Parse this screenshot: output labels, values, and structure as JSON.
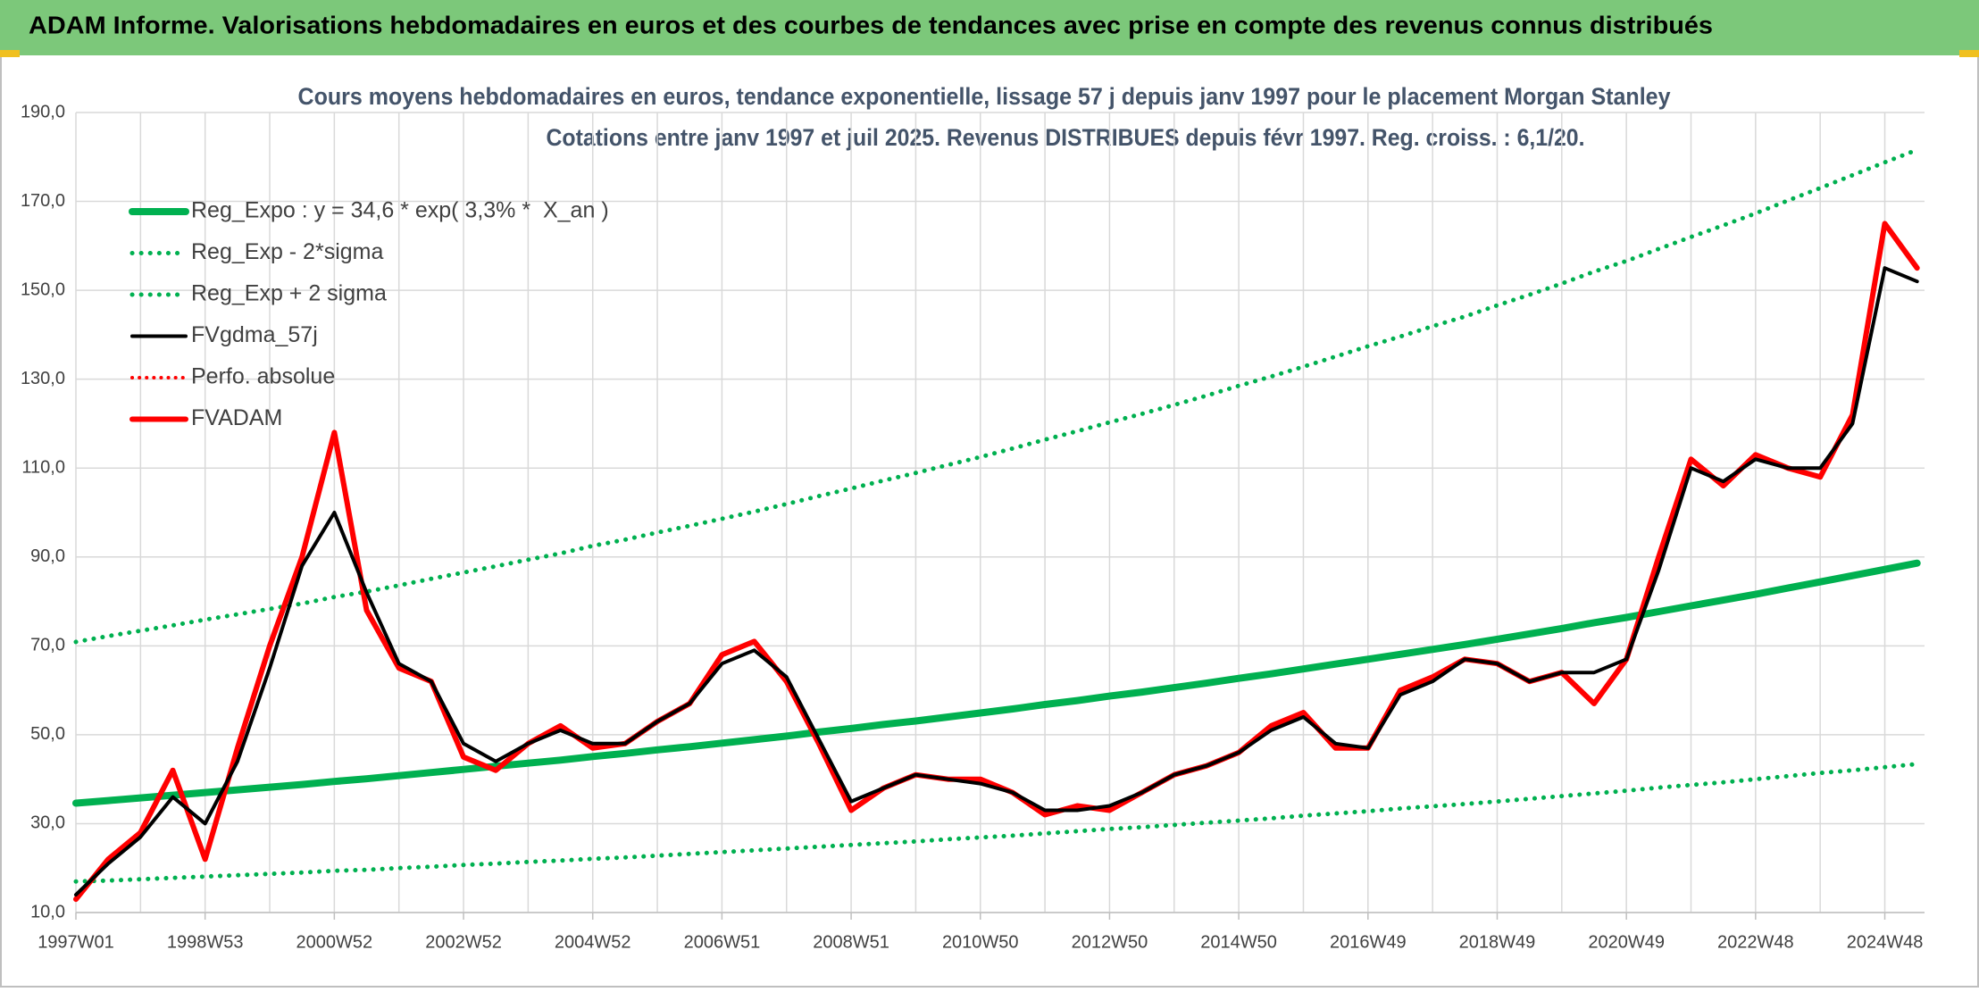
{
  "header": {
    "title": "ADAM Informe. Valorisations hebdomadaires en euros et des courbes de tendances avec prise en compte des revenus connus distribués"
  },
  "chart_data": {
    "type": "line",
    "title": "Cours moyens hebdomadaires en euros, tendance exponentielle, lissage 57 j depuis janv 1997 pour le placement Morgan Stanley",
    "subtitle": "Cotations entre janv 1997 et juil 2025. Revenus DISTRIBUES depuis févr 1997. Reg. croiss. : 6,1/20.",
    "categories": [
      "1997W01",
      null,
      null,
      null,
      "1998W53",
      null,
      null,
      null,
      "2000W52",
      null,
      null,
      null,
      "2002W52",
      null,
      null,
      null,
      "2004W52",
      null,
      null,
      null,
      "2006W51",
      null,
      null,
      null,
      "2008W51",
      null,
      null,
      null,
      "2010W50",
      null,
      null,
      null,
      "2012W50",
      null,
      null,
      null,
      "2014W50",
      null,
      null,
      null,
      "2016W49",
      null,
      null,
      null,
      "2018W49",
      null,
      null,
      null,
      "2020W49",
      null,
      null,
      null,
      "2022W48",
      null,
      null,
      null,
      "2024W48",
      null
    ],
    "ylim": [
      10,
      190
    ],
    "yticks": [
      {
        "value": 10,
        "label": "10,0"
      },
      {
        "value": 30,
        "label": "30,0"
      },
      {
        "value": 50,
        "label": "50,0"
      },
      {
        "value": 70,
        "label": "70,0"
      },
      {
        "value": 90,
        "label": "90,0"
      },
      {
        "value": 110,
        "label": "110,0"
      },
      {
        "value": 130,
        "label": "130,0"
      },
      {
        "value": 150,
        "label": "150,0"
      },
      {
        "value": 170,
        "label": "170,0"
      },
      {
        "value": 190,
        "label": "190,0"
      }
    ],
    "grid": true,
    "legend": "upper-left",
    "series": [
      {
        "name": "Reg_Expo : y = 34,6 * exp( 3,3% *  X_an )",
        "color": "#00b050",
        "style": "solid",
        "width": 8,
        "values": [
          34.6,
          35.2,
          35.8,
          36.4,
          37.0,
          37.6,
          38.2,
          38.8,
          39.5,
          40.1,
          40.8,
          41.5,
          42.2,
          42.9,
          43.6,
          44.3,
          45.1,
          45.8,
          46.6,
          47.3,
          48.1,
          48.9,
          49.7,
          50.6,
          51.4,
          52.3,
          53.1,
          54.0,
          54.9,
          55.8,
          56.8,
          57.7,
          58.7,
          59.6,
          60.6,
          61.6,
          62.7,
          63.7,
          64.8,
          65.9,
          67.0,
          68.1,
          69.2,
          70.3,
          71.5,
          72.7,
          73.9,
          75.2,
          76.4,
          77.7,
          79.0,
          80.3,
          81.6,
          83.0,
          84.4,
          85.8,
          87.2,
          88.6
        ]
      },
      {
        "name": "Reg_Exp - 2*sigma",
        "color": "#00b050",
        "style": "dotted",
        "width": 5,
        "values": [
          17.0,
          17.2,
          17.5,
          17.8,
          18.1,
          18.4,
          18.7,
          19.0,
          19.4,
          19.6,
          20.0,
          20.3,
          20.7,
          21.0,
          21.4,
          21.7,
          22.1,
          22.4,
          22.8,
          23.2,
          23.6,
          24.0,
          24.4,
          24.8,
          25.2,
          25.6,
          26.0,
          26.5,
          26.9,
          27.3,
          27.8,
          28.3,
          28.8,
          29.2,
          29.7,
          30.2,
          30.7,
          31.2,
          31.8,
          32.3,
          32.8,
          33.4,
          33.9,
          34.4,
          35.0,
          35.6,
          36.2,
          36.8,
          37.4,
          38.1,
          38.7,
          39.3,
          40.0,
          40.7,
          41.4,
          42.0,
          42.7,
          43.4
        ]
      },
      {
        "name": "Reg_Exp + 2 sigma",
        "color": "#00b050",
        "style": "dotted",
        "width": 5,
        "values": [
          70.9,
          72.2,
          73.4,
          74.6,
          75.9,
          77.1,
          78.3,
          79.5,
          81.0,
          82.2,
          83.6,
          85.1,
          86.5,
          87.9,
          89.4,
          90.8,
          92.5,
          93.9,
          95.5,
          97.0,
          98.6,
          100.2,
          101.9,
          103.7,
          105.4,
          107.2,
          108.9,
          110.7,
          112.5,
          114.4,
          116.4,
          118.3,
          120.3,
          122.2,
          124.2,
          126.3,
          128.5,
          130.6,
          132.8,
          135.1,
          137.4,
          139.6,
          141.9,
          144.1,
          146.6,
          149.0,
          151.5,
          154.2,
          156.6,
          159.3,
          162.0,
          164.6,
          167.3,
          170.2,
          173.0,
          175.9,
          178.8,
          181.6
        ]
      },
      {
        "name": "FVgdma_57j",
        "color": "#000000",
        "style": "solid",
        "width": 4,
        "values": [
          14,
          21,
          27,
          36,
          30,
          44,
          65,
          88,
          100,
          82,
          66,
          62,
          48,
          44,
          48,
          51,
          48,
          48,
          53,
          57,
          66,
          69,
          63,
          49,
          35,
          38,
          41,
          40,
          39,
          37,
          33,
          33,
          34,
          37,
          41,
          43,
          46,
          51,
          54,
          48,
          47,
          59,
          62,
          67,
          66,
          62,
          64,
          64,
          67,
          87,
          110,
          107,
          112,
          110,
          110,
          120,
          155,
          152
        ]
      },
      {
        "name": "Perfo. absolue",
        "color": "#ff0000",
        "style": "dotted",
        "width": 4,
        "values": [
          null,
          null,
          null,
          null,
          null,
          null,
          null,
          null,
          null,
          null,
          null,
          null,
          null,
          null,
          null,
          null,
          null,
          null,
          null,
          null,
          null,
          null,
          null,
          null,
          null,
          null,
          null,
          null,
          null,
          null,
          null,
          null,
          null,
          null,
          null,
          null,
          null,
          null,
          null,
          null,
          null,
          null,
          null,
          null,
          null,
          null,
          null,
          null,
          null,
          null,
          null,
          null,
          null,
          null,
          null,
          null,
          null,
          null
        ]
      },
      {
        "name": "FVADAM",
        "color": "#ff0000",
        "style": "solid",
        "width": 6,
        "values": [
          13,
          22,
          28,
          42,
          22,
          47,
          70,
          90,
          118,
          78,
          65,
          62,
          45,
          42,
          48,
          52,
          47,
          48,
          53,
          57,
          68,
          71,
          62,
          48,
          33,
          38,
          41,
          40,
          40,
          37,
          32,
          34,
          33,
          37,
          41,
          43,
          46,
          52,
          55,
          47,
          47,
          60,
          63,
          67,
          66,
          62,
          64,
          57,
          67,
          90,
          112,
          106,
          113,
          110,
          108,
          122,
          165,
          155
        ]
      }
    ]
  }
}
